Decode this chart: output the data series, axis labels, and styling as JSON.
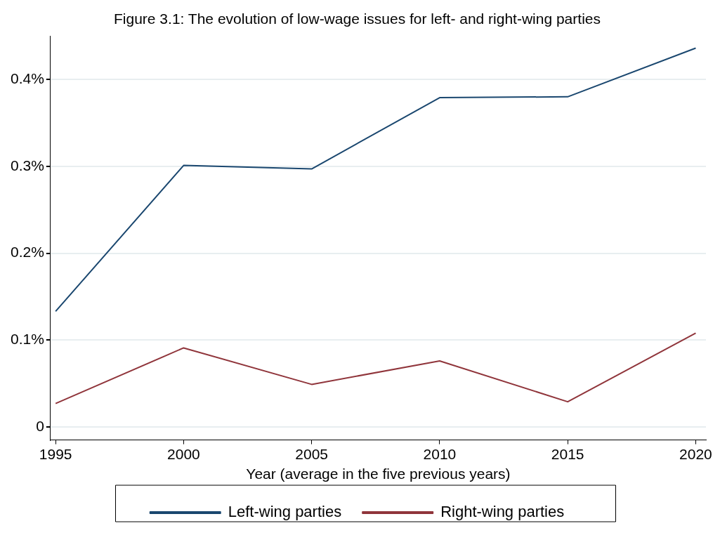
{
  "chart_data": {
    "type": "line",
    "title": "Figure 3.1: The evolution of low-wage issues for left- and right-wing parties",
    "xlabel": "Year (average in the five previous years)",
    "x": [
      1995,
      2000,
      2005,
      2010,
      2015,
      2020
    ],
    "series": [
      {
        "name": "Left-wing parties",
        "color": "#1a476f",
        "values": [
          0.133,
          0.301,
          0.297,
          0.379,
          0.38,
          0.436
        ]
      },
      {
        "name": "Right-wing parties",
        "color": "#90353b",
        "values": [
          0.027,
          0.091,
          0.049,
          0.076,
          0.029,
          0.108
        ]
      }
    ],
    "xlim": [
      1994.8,
      2020.4
    ],
    "xticks": [
      1995,
      2000,
      2005,
      2010,
      2015,
      2020
    ],
    "ylim": [
      -0.015,
      0.45
    ],
    "yticks": [
      0,
      {
        "value": 0.1,
        "label": "0.1%"
      },
      {
        "value": 0.2,
        "label": "0.2%"
      },
      {
        "value": 0.3,
        "label": "0.3%"
      },
      {
        "value": 0.4,
        "label": "0.4%"
      }
    ],
    "grid": "y",
    "legend": "bottom",
    "marker": "none",
    "line_style": "solid"
  }
}
